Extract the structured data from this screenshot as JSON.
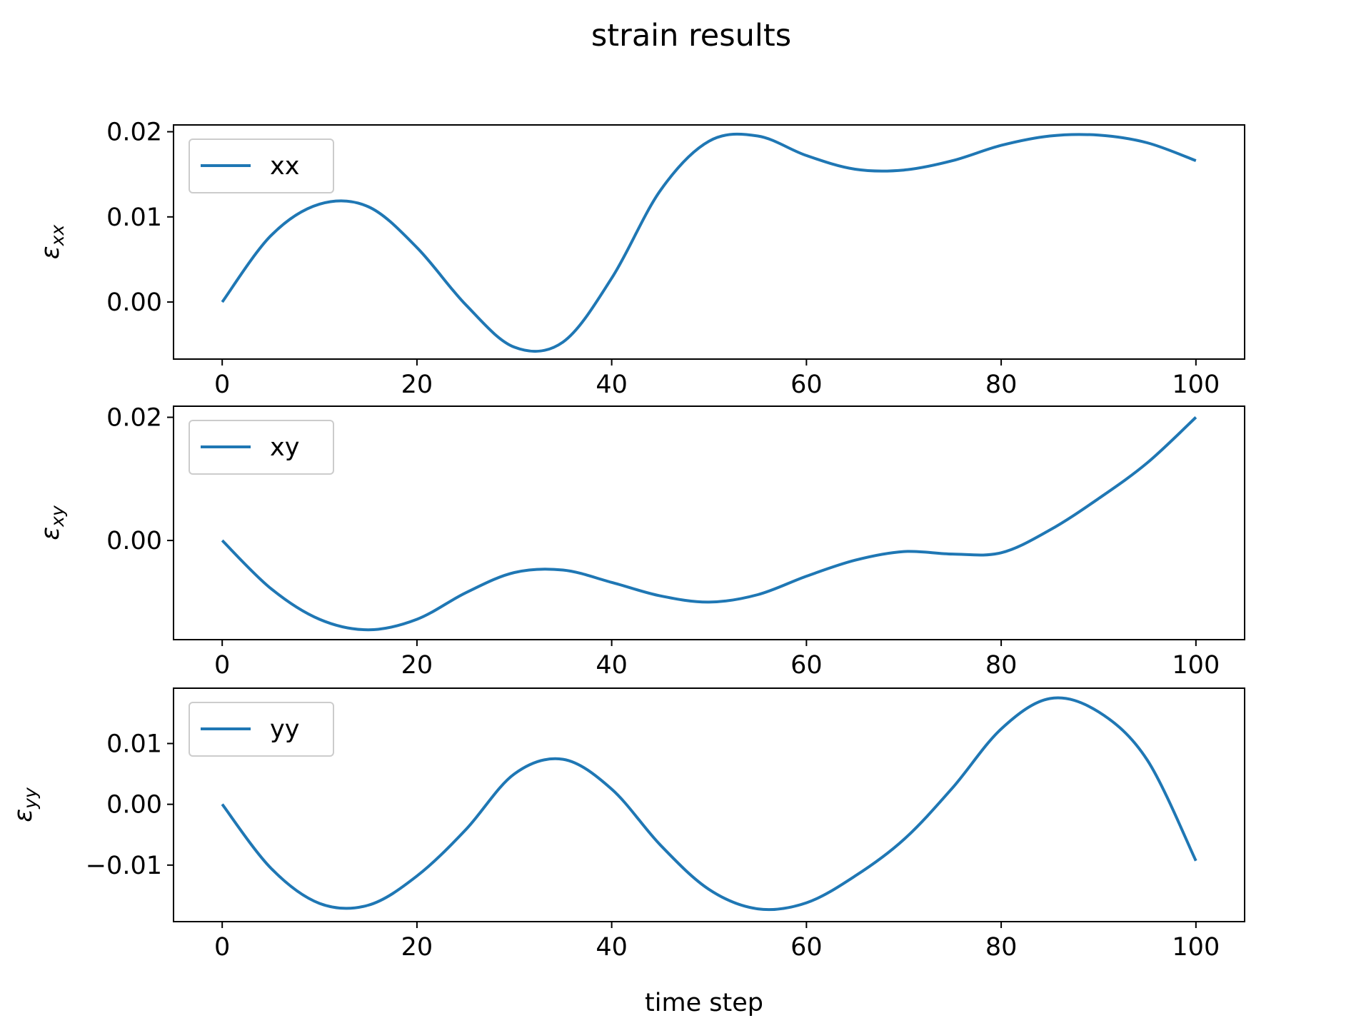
{
  "chart_data": {
    "type": "line",
    "title": "strain results",
    "xlabel": "time step",
    "x": [
      0,
      5,
      10,
      15,
      20,
      25,
      30,
      35,
      40,
      45,
      50,
      55,
      60,
      65,
      70,
      75,
      80,
      85,
      90,
      95,
      100
    ],
    "xlim": [
      -5,
      105
    ],
    "xticks": [
      0,
      20,
      40,
      60,
      80,
      100
    ],
    "line_color": "#1f77b4",
    "subplots": [
      {
        "ylabel_main": "ε",
        "ylabel_sub": "xx",
        "ylim": [
          -0.0067,
          0.0208
        ],
        "yticks": [
          0.0,
          0.01,
          0.02
        ],
        "ytick_labels": [
          "0.00",
          "0.01",
          "0.02"
        ],
        "legend_position": "upper-left",
        "series": [
          {
            "name": "xx",
            "values": [
              0.0,
              0.0078,
              0.0115,
              0.0112,
              0.0064,
              -0.0003,
              -0.0053,
              -0.0047,
              0.0028,
              0.0131,
              0.0189,
              0.0195,
              0.0172,
              0.0156,
              0.0155,
              0.0166,
              0.0184,
              0.0195,
              0.0196,
              0.0187,
              0.0166
            ]
          }
        ]
      },
      {
        "ylabel_main": "ε",
        "ylabel_sub": "xy",
        "ylim": [
          -0.0161,
          0.0218
        ],
        "yticks": [
          0.0,
          0.02
        ],
        "ytick_labels": [
          "0.00",
          "0.02"
        ],
        "legend_position": "upper-left",
        "series": [
          {
            "name": "xy",
            "values": [
              0.0,
              -0.0078,
              -0.0128,
              -0.0145,
              -0.0128,
              -0.0085,
              -0.0052,
              -0.0048,
              -0.0068,
              -0.009,
              -0.01,
              -0.0088,
              -0.0058,
              -0.0032,
              -0.0018,
              -0.0022,
              -0.002,
              0.0017,
              0.0068,
              0.0126,
              0.02
            ]
          }
        ]
      },
      {
        "ylabel_main": "ε",
        "ylabel_sub": "yy",
        "ylim": [
          -0.0193,
          0.0191
        ],
        "yticks": [
          -0.01,
          0.0,
          0.01
        ],
        "ytick_labels": [
          "−0.01",
          "0.00",
          "0.01"
        ],
        "legend_position": "upper-left",
        "series": [
          {
            "name": "yy",
            "values": [
              0.0,
              -0.0105,
              -0.0163,
              -0.0166,
              -0.0118,
              -0.0042,
              0.005,
              0.0074,
              0.0025,
              -0.0067,
              -0.014,
              -0.0172,
              -0.0162,
              -0.0118,
              -0.0058,
              0.0027,
              0.0124,
              0.0174,
              0.0152,
              0.0073,
              -0.0093
            ]
          }
        ]
      }
    ]
  }
}
